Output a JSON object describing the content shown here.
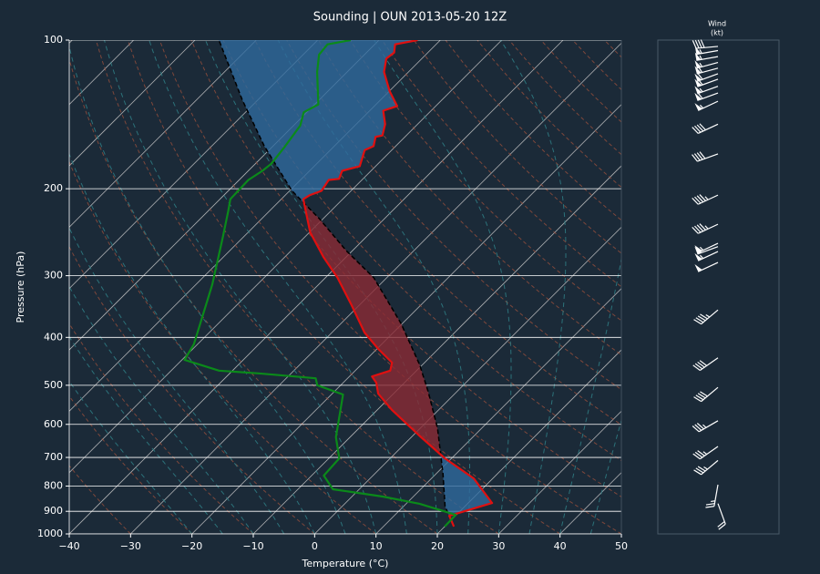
{
  "chart_data": {
    "type": "skewt",
    "title": "Sounding | OUN 2013-05-20 12Z",
    "xlabel": "Temperature (°C)",
    "ylabel": "Pressure (hPa)",
    "xlim": [
      -40,
      50
    ],
    "ylim": [
      1000,
      100
    ],
    "log_y": true,
    "grid": true,
    "xticks": [
      {
        "value": -40,
        "label": "−40"
      },
      {
        "value": -30,
        "label": "−30"
      },
      {
        "value": -20,
        "label": "−20"
      },
      {
        "value": -10,
        "label": "−10"
      },
      0,
      10,
      20,
      30,
      40,
      50
    ],
    "yticks": [
      100,
      200,
      300,
      400,
      500,
      600,
      700,
      800,
      900,
      1000
    ],
    "cape_color": "#8b2a35",
    "cin_color": "#2f6a9e",
    "series": [
      {
        "color": "#e01010",
        "style": "solid",
        "pressure": [
          966,
          919,
          866,
          772,
          703,
          632,
          561,
          520,
          494,
          480,
          467,
          450,
          422,
          391,
          344,
          303,
          275,
          245,
          210,
          206,
          202,
          192,
          191,
          184,
          180,
          167,
          164,
          157,
          156,
          148,
          139,
          136,
          127,
          116,
          109,
          106,
          102,
          100
        ],
        "values": [
          21.5,
          19.0,
          23.9,
          16.9,
          8.9,
          1.0,
          -7.6,
          -12.5,
          -14.6,
          -16.3,
          -14.3,
          -15.3,
          -19.8,
          -24.7,
          -31.3,
          -38.0,
          -43.7,
          -49.9,
          -56.4,
          -56.0,
          -54.8,
          -55.4,
          -53.9,
          -54.7,
          -52.6,
          -54.4,
          -53.6,
          -54.8,
          -53.9,
          -55.3,
          -57.8,
          -56.3,
          -59.9,
          -64.0,
          -65.8,
          -65.5,
          -66.7,
          -63.7
        ]
      },
      {
        "color": "#0b8a1a",
        "style": "solid",
        "pressure": [
          966,
          915,
          869,
          840,
          812,
          762,
          703,
          637,
          522,
          500,
          484,
          473,
          467,
          444,
          413,
          313,
          251,
          222,
          210,
          192,
          184,
          178,
          164,
          149,
          140,
          135,
          116,
          107,
          102,
          100
        ],
        "values": [
          20.0,
          19.9,
          12.2,
          5.0,
          -4.3,
          -8.0,
          -8.3,
          -12.3,
          -18.1,
          -23.8,
          -25.2,
          -35.3,
          -42.2,
          -49.6,
          -50.6,
          -57.3,
          -63.3,
          -66.7,
          -68.3,
          -68.5,
          -67.7,
          -67.4,
          -68.0,
          -68.9,
          -70.5,
          -69.4,
          -74.9,
          -77.4,
          -77.7,
          -74.6
        ]
      },
      {
        "color": "#000000",
        "style": "dashed",
        "pressure": [
          966,
          880,
          755,
          611,
          516,
          454,
          375,
          303,
          267,
          230,
          202,
          164,
          132,
          100
        ],
        "values": [
          21.5,
          16.8,
          11.1,
          2.8,
          -4.6,
          -10.5,
          -20.2,
          -32.1,
          -41.0,
          -50.6,
          -59.6,
          -71.4,
          -82.6,
          -96.1
        ]
      }
    ],
    "wind_title": "Wind",
    "wind_units": "(kt)",
    "wind": {
      "pressure": [
        868,
        795,
        710,
        665,
        590,
        505,
        440,
        352,
        282,
        268,
        262,
        258,
        236,
        206,
        170,
        148,
        133,
        128,
        124,
        120,
        117,
        114,
        111,
        108,
        105,
        103
      ],
      "direction": [
        160,
        190,
        230,
        235,
        240,
        230,
        235,
        230,
        245,
        245,
        250,
        245,
        245,
        245,
        250,
        245,
        245,
        250,
        250,
        250,
        250,
        255,
        255,
        260,
        260,
        265
      ],
      "speed": [
        20,
        25,
        35,
        35,
        35,
        40,
        40,
        45,
        50,
        55,
        50,
        55,
        45,
        45,
        40,
        40,
        55,
        60,
        55,
        60,
        60,
        60,
        55,
        55,
        55,
        40
      ]
    }
  }
}
